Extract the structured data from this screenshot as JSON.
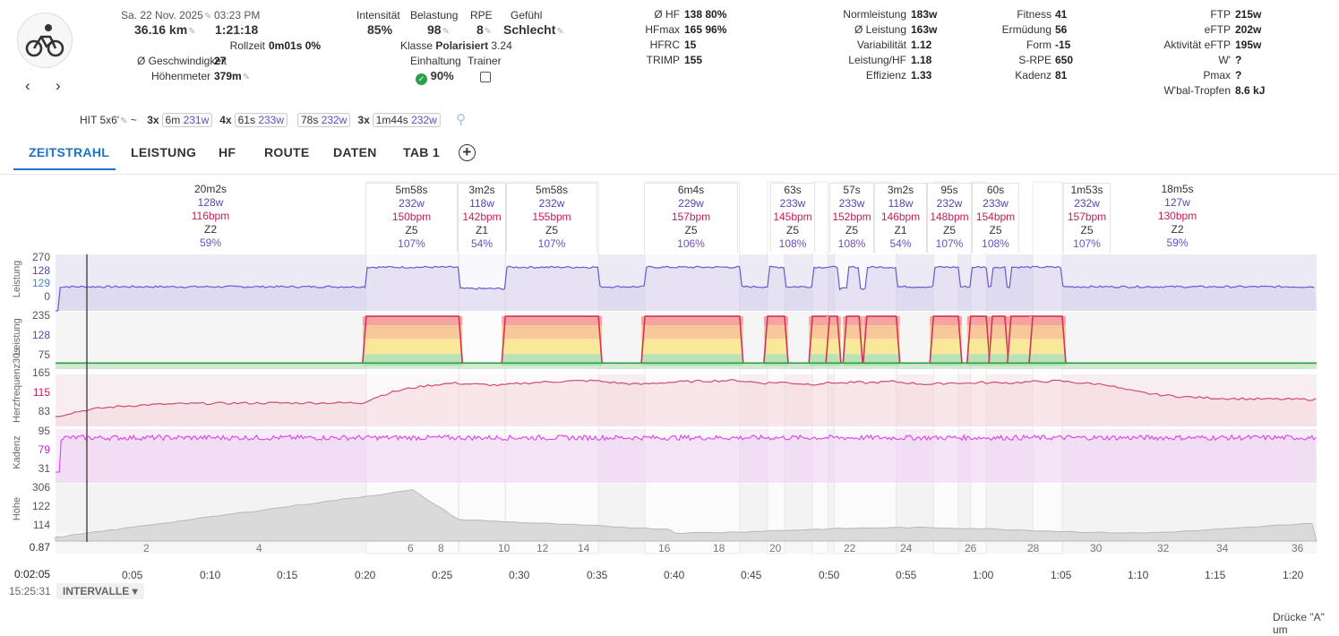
{
  "activity": {
    "date": "Sa. 22 Nov. 2025",
    "time": "03:23 PM",
    "distance": "36.16 km",
    "duration": "1:21:18",
    "rollzeit_label": "Rollzeit",
    "rollzeit": "0m01s 0%",
    "speed_label": "Ø Geschwindigkeit",
    "speed": "27",
    "elev_label": "Höhenmeter",
    "elev": "379m"
  },
  "intensity": {
    "l1": "Intensität",
    "v1": "85%",
    "l2": "Belastung",
    "v2": "98",
    "l3": "RPE",
    "v3": "8",
    "l4": "Gefühl",
    "v4": "Schlecht",
    "klasse_label": "Klasse",
    "klasse": "Polarisiert",
    "klasse_val": "3.24",
    "einhaltung_label": "Einhaltung",
    "einhaltung": "90%",
    "trainer_label": "Trainer"
  },
  "hr": [
    {
      "k": "Ø HF",
      "v": "138 80%"
    },
    {
      "k": "HFmax",
      "v": "165 96%"
    },
    {
      "k": "HFRC",
      "v": "15"
    },
    {
      "k": "TRIMP",
      "v": "155"
    }
  ],
  "power": [
    {
      "k": "Normleistung",
      "v": "183w"
    },
    {
      "k": "Ø Leistung",
      "v": "163w"
    },
    {
      "k": "Variabilität",
      "v": "1.12"
    },
    {
      "k": "Leistung/HF",
      "v": "1.18"
    },
    {
      "k": "Effizienz",
      "v": "1.33"
    }
  ],
  "fitness": [
    {
      "k": "Fitness",
      "v": "41"
    },
    {
      "k": "Ermüdung",
      "v": "56"
    },
    {
      "k": "Form",
      "v": "-15"
    },
    {
      "k": "S-RPE",
      "v": "650"
    },
    {
      "k": "Kadenz",
      "v": "81"
    }
  ],
  "ftp": [
    {
      "k": "FTP",
      "v": "215w"
    },
    {
      "k": "eFTP",
      "v": "202w"
    },
    {
      "k": "Aktivität eFTP",
      "v": "195w"
    },
    {
      "k": "W'",
      "v": "?"
    },
    {
      "k": "Pmax",
      "v": "?"
    },
    {
      "k": "W'bal-Tropfen",
      "v": "8.6 kJ"
    }
  ],
  "workout": {
    "name": "HIT 5x6'",
    "tilde": "~",
    "chips": [
      {
        "n": "3x",
        "t": "6m",
        "w": "231w"
      },
      {
        "n": "4x",
        "t": "61s",
        "w": "233w"
      },
      {
        "n": "",
        "t": "78s",
        "w": "232w"
      },
      {
        "n": "3x",
        "t": "1m44s",
        "w": "232w"
      }
    ]
  },
  "tabs": [
    "ZEITSTRAHL",
    "LEISTUNG",
    "HF",
    "ROUTE",
    "DATEN",
    "TAB 1"
  ],
  "intervals": [
    {
      "d": "20m2s",
      "w": "128w",
      "b": "116bpm",
      "z": "Z2",
      "p": "59%"
    },
    {
      "d": "5m58s",
      "w": "232w",
      "b": "150bpm",
      "z": "Z5",
      "p": "107%"
    },
    {
      "d": "3m2s",
      "w": "118w",
      "b": "142bpm",
      "z": "Z1",
      "p": "54%"
    },
    {
      "d": "5m58s",
      "w": "232w",
      "b": "155bpm",
      "z": "Z5",
      "p": "107%"
    },
    {
      "d": "6m4s",
      "w": "229w",
      "b": "157bpm",
      "z": "Z5",
      "p": "106%"
    },
    {
      "d": "63s",
      "w": "233w",
      "b": "145bpm",
      "z": "Z5",
      "p": "108%"
    },
    {
      "d": "57s",
      "w": "233w",
      "b": "152bpm",
      "z": "Z5",
      "p": "108%"
    },
    {
      "d": "3m2s",
      "w": "118w",
      "b": "146bpm",
      "z": "Z1",
      "p": "54%"
    },
    {
      "d": "95s",
      "w": "232w",
      "b": "148bpm",
      "z": "Z5",
      "p": "107%"
    },
    {
      "d": "60s",
      "w": "233w",
      "b": "154bpm",
      "z": "Z5",
      "p": "108%"
    },
    {
      "d": "1m53s",
      "w": "232w",
      "b": "157bpm",
      "z": "Z5",
      "p": "107%"
    },
    {
      "d": "18m5s",
      "w": "127w",
      "b": "130bpm",
      "z": "Z2",
      "p": "59%"
    }
  ],
  "panels": {
    "leistung": {
      "title": "Leistung",
      "ticks": [
        "270",
        "128",
        "129",
        "0"
      ]
    },
    "leistung30": {
      "title": "Leistung",
      "ticks": [
        "235",
        "128",
        "75"
      ]
    },
    "hf": {
      "title": "Herzfrequenz30s",
      "ticks": [
        "165",
        "115",
        "83"
      ]
    },
    "kadenz": {
      "title": "Kadenz",
      "ticks": [
        "95",
        "79",
        "31"
      ]
    },
    "hoehe": {
      "title": "Höhe",
      "ticks": [
        "306",
        "122",
        "114"
      ]
    },
    "bottom": "0.87"
  },
  "interval_numbers": [
    "2",
    "4",
    "6",
    "8",
    "10",
    "12",
    "14",
    "16",
    "18",
    "20",
    "22",
    "24",
    "26",
    "28",
    "30",
    "32",
    "34",
    "36"
  ],
  "xticks": [
    "0:05",
    "0:10",
    "0:15",
    "0:20",
    "0:25",
    "0:30",
    "0:35",
    "0:40",
    "0:45",
    "0:50",
    "0:55",
    "1:00",
    "1:05",
    "1:10",
    "1:15",
    "1:20"
  ],
  "cursor_time": "0:02:05",
  "clock": "15:25:31",
  "intervals_btn": "INTERVALLE",
  "hint": "Drücke \"A\" um"
}
